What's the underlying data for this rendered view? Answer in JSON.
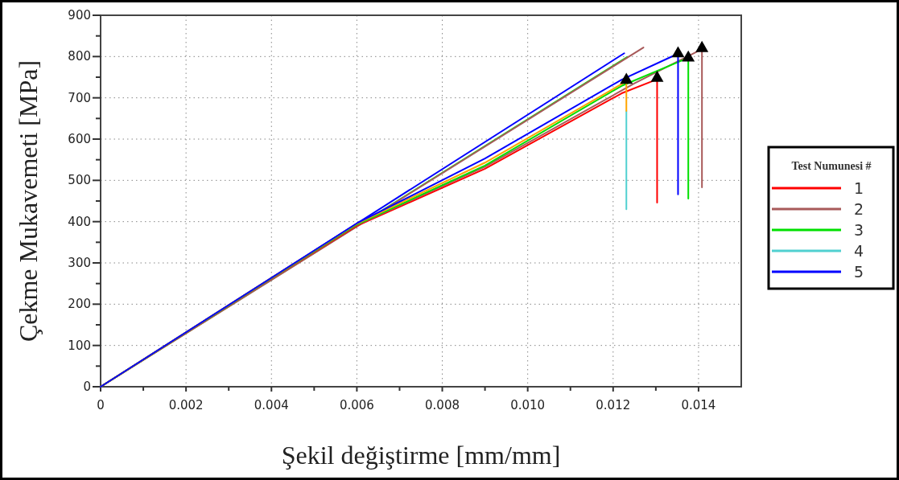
{
  "chart_data": {
    "type": "line",
    "xlabel": "Şekil değiştirme [mm/mm]",
    "ylabel": "Çekme Mukavemeti [MPa]",
    "legend_title": "Test Numunesi #",
    "legend": "right",
    "grid": true,
    "line_style": "solid",
    "xlim": [
      0,
      0.015
    ],
    "ylim": [
      0,
      900
    ],
    "xticks": [
      0,
      {
        "value": 0.001,
        "label": null
      },
      0.002,
      {
        "value": 0.003,
        "label": null
      },
      0.004,
      {
        "value": 0.005,
        "label": null
      },
      0.006,
      {
        "value": 0.007,
        "label": null
      },
      0.008,
      {
        "value": 0.009,
        "label": null
      },
      {
        "value": 0.01,
        "label": "0.010"
      },
      {
        "value": 0.011,
        "label": null
      },
      0.012,
      {
        "value": 0.013,
        "label": null
      },
      0.014
    ],
    "yticks": [
      0,
      {
        "value": 50,
        "label": null
      },
      100,
      {
        "value": 150,
        "label": null
      },
      200,
      {
        "value": 250,
        "label": null
      },
      300,
      {
        "value": 350,
        "label": null
      },
      400,
      {
        "value": 450,
        "label": null
      },
      500,
      {
        "value": 550,
        "label": null
      },
      600,
      {
        "value": 650,
        "label": null
      },
      700,
      {
        "value": 750,
        "label": null
      },
      800,
      {
        "value": 850,
        "label": null
      },
      900
    ],
    "series": [
      {
        "color": "#0000ff",
        "x": [
          0,
          0.01226
        ],
        "values": [
          0,
          808
        ]
      },
      {
        "color": "#00e000",
        "x": [
          0,
          0.01233
        ],
        "values": [
          0,
          799
        ]
      },
      {
        "color": "#a85a5a",
        "x": [
          0,
          0.01271
        ],
        "values": [
          0,
          822
        ]
      },
      {
        "name": "1",
        "color": "#ff0000",
        "x": [
          0,
          0.004,
          0.006,
          0.009,
          0.0122,
          0.01303,
          0.01303
        ],
        "values": [
          0,
          262,
          390,
          528,
          711,
          745,
          446
        ]
      },
      {
        "name": "2",
        "color": "#a85a5a",
        "x": [
          0,
          0.004,
          0.006,
          0.009,
          0.0125,
          0.01408,
          0.01408
        ],
        "values": [
          0,
          262,
          392,
          533,
          735,
          818,
          483
        ]
      },
      {
        "name": "3",
        "color": "#00e000",
        "x": [
          0,
          0.004,
          0.006,
          0.009,
          0.0122,
          0.01376,
          0.01376
        ],
        "values": [
          0,
          263,
          393,
          536,
          729,
          797,
          456
        ]
      },
      {
        "name": "4",
        "color": "#50d0d0",
        "x": [
          0.01231,
          0.01231
        ],
        "values": [
          668,
          430
        ]
      },
      {
        "color": "#ffa500",
        "x": [
          0,
          0.004,
          0.006,
          0.009,
          0.01231,
          0.01231
        ],
        "values": [
          0,
          264,
          395,
          543,
          740,
          668
        ]
      },
      {
        "name": "5",
        "color": "#0000ff",
        "x": [
          0,
          0.004,
          0.006,
          0.009,
          0.0122,
          0.01352,
          0.01352
        ],
        "values": [
          0,
          264,
          396,
          553,
          744,
          807,
          466
        ]
      },
      {
        "type": "scatter",
        "color": "#000000",
        "marker": "triangle",
        "x": [
          0.01231,
          0.01303,
          0.01352,
          0.01376,
          0.01408
        ],
        "values": [
          743,
          748,
          807,
          797,
          820
        ]
      }
    ]
  }
}
